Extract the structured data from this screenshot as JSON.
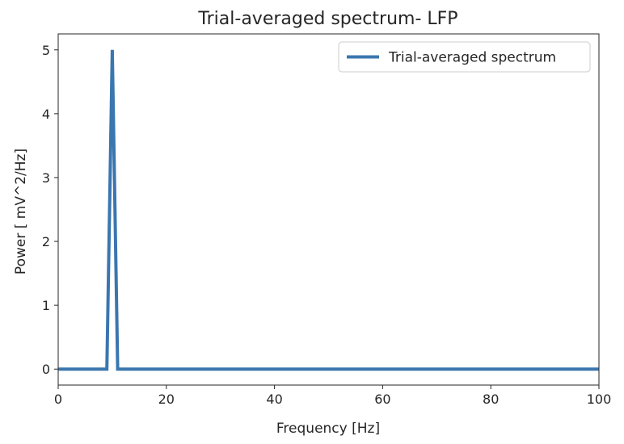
{
  "chart_data": {
    "type": "line",
    "title": "Trial-averaged spectrum- LFP",
    "xlabel": "Frequency [Hz]",
    "ylabel": "Power [ mV^2/Hz]",
    "xlim": [
      0,
      100
    ],
    "ylim": [
      -0.25,
      5.25
    ],
    "xticks": [
      0,
      20,
      40,
      60,
      80,
      100
    ],
    "yticks": [
      0,
      1,
      2,
      3,
      4,
      5
    ],
    "xtick_labels": [
      "0",
      "20",
      "40",
      "60",
      "80",
      "100"
    ],
    "ytick_labels": [
      "0",
      "1",
      "2",
      "3",
      "4",
      "5"
    ],
    "grid": false,
    "legend_position": "top-right",
    "series": [
      {
        "name": "Trial-averaged spectrum",
        "color": "#3a76af",
        "x": [
          0,
          9,
          10,
          11,
          100
        ],
        "y": [
          0,
          0,
          5,
          0,
          0
        ]
      }
    ]
  }
}
